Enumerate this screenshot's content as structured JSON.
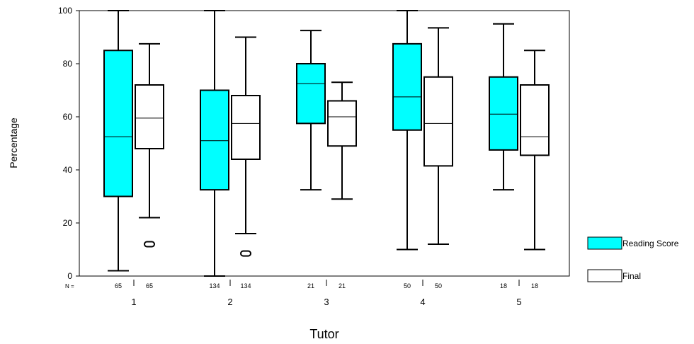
{
  "chart_data": {
    "type": "boxplot",
    "xlabel": "Tutor",
    "ylabel": "Percentage",
    "ylim": [
      0,
      100
    ],
    "yticks": [
      0,
      20,
      40,
      60,
      80,
      100
    ],
    "n_label": "N =",
    "categories": [
      "1",
      "2",
      "3",
      "4",
      "5"
    ],
    "series": [
      {
        "name": "Reading Score",
        "color": "#00ffff",
        "n": [
          65,
          134,
          21,
          50,
          18
        ],
        "boxes": [
          {
            "whisker_low": 2,
            "q1": 30,
            "median": 52.5,
            "q3": 85,
            "whisker_high": 100,
            "outliers": []
          },
          {
            "whisker_low": 0,
            "q1": 32.5,
            "median": 51,
            "q3": 70,
            "whisker_high": 100,
            "outliers": []
          },
          {
            "whisker_low": 32.5,
            "q1": 57.5,
            "median": 72.5,
            "q3": 80,
            "whisker_high": 92.5,
            "outliers": []
          },
          {
            "whisker_low": 10,
            "q1": 55,
            "median": 67.5,
            "q3": 87.5,
            "whisker_high": 100,
            "outliers": []
          },
          {
            "whisker_low": 32.5,
            "q1": 47.5,
            "median": 61,
            "q3": 75,
            "whisker_high": 95,
            "outliers": []
          }
        ]
      },
      {
        "name": "Final",
        "color": "#ffffff",
        "n": [
          65,
          134,
          21,
          50,
          18
        ],
        "boxes": [
          {
            "whisker_low": 22,
            "q1": 48,
            "median": 59.5,
            "q3": 72,
            "whisker_high": 87.5,
            "outliers": [
              12
            ]
          },
          {
            "whisker_low": 16,
            "q1": 44,
            "median": 57.5,
            "q3": 68,
            "whisker_high": 90,
            "outliers": [
              8.5
            ]
          },
          {
            "whisker_low": 29,
            "q1": 49,
            "median": 60,
            "q3": 66,
            "whisker_high": 73,
            "outliers": []
          },
          {
            "whisker_low": 12,
            "q1": 41.5,
            "median": 57.5,
            "q3": 75,
            "whisker_high": 93.5,
            "outliers": []
          },
          {
            "whisker_low": 10,
            "q1": 45.5,
            "median": 52.5,
            "q3": 72,
            "whisker_high": 85,
            "outliers": []
          }
        ]
      }
    ],
    "legend": {
      "position": "right"
    }
  }
}
